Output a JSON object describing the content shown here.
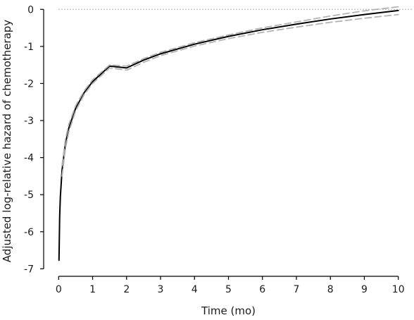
{
  "chart_data": {
    "type": "line",
    "xlabel": "Time (mo)",
    "ylabel": "Adjusted log-relative hazard of chemotherapy",
    "xlim": [
      -0.4,
      10.4
    ],
    "ylim": [
      -7.05,
      0.1
    ],
    "xticks": [
      0,
      1,
      2,
      3,
      4,
      5,
      6,
      7,
      8,
      9,
      10
    ],
    "yticks": [
      0,
      -1,
      -2,
      -3,
      -4,
      -5,
      -6,
      -7
    ],
    "xtick_labels": [
      "0",
      "1",
      "2",
      "3",
      "4",
      "5",
      "6",
      "7",
      "8",
      "9",
      "10"
    ],
    "ytick_labels": [
      "0",
      "-1",
      "-2",
      "-3",
      "-4",
      "-5",
      "-6",
      "-7"
    ],
    "reference_line": {
      "y": 0,
      "style": "dotted",
      "color": "#aaaaaa"
    },
    "grid": false,
    "legend": "none",
    "series": [
      {
        "role": "estimate",
        "style": "solid",
        "color": "#000000",
        "x": [
          0.01,
          0.03,
          0.05,
          0.1,
          0.2,
          0.3,
          0.5,
          0.75,
          1,
          1.5,
          2,
          2.5,
          3,
          4,
          5,
          6,
          7,
          8,
          9,
          10
        ],
        "y": [
          -6.77,
          -5.6,
          -5.06,
          -4.34,
          -3.62,
          -3.2,
          -2.67,
          -2.25,
          -1.95,
          -1.53,
          -1.58,
          -1.37,
          -1.2,
          -0.94,
          -0.73,
          -0.55,
          -0.4,
          -0.26,
          -0.14,
          -0.03
        ]
      },
      {
        "role": "upper confidence bound",
        "style": "dashed",
        "color": "#b3b3b3",
        "x": [
          0.1,
          0.2,
          0.3,
          0.5,
          0.75,
          1,
          1.5,
          2,
          2.5,
          3,
          4,
          5,
          6,
          7,
          8,
          9,
          10
        ],
        "y": [
          -4.2,
          -3.5,
          -3.1,
          -2.6,
          -2.2,
          -1.9,
          -1.5,
          -1.53,
          -1.33,
          -1.16,
          -0.9,
          -0.69,
          -0.5,
          -0.34,
          -0.18,
          -0.04,
          0.07
        ]
      },
      {
        "role": "lower confidence bound",
        "style": "dashed",
        "color": "#b3b3b3",
        "x": [
          0.1,
          0.2,
          0.3,
          0.5,
          0.75,
          1,
          1.5,
          2,
          2.5,
          3,
          4,
          5,
          6,
          7,
          8,
          9,
          10
        ],
        "y": [
          -4.5,
          -3.75,
          -3.3,
          -2.74,
          -2.3,
          -2.0,
          -1.58,
          -1.64,
          -1.43,
          -1.25,
          -0.99,
          -0.79,
          -0.62,
          -0.48,
          -0.35,
          -0.24,
          -0.14
        ]
      }
    ]
  }
}
